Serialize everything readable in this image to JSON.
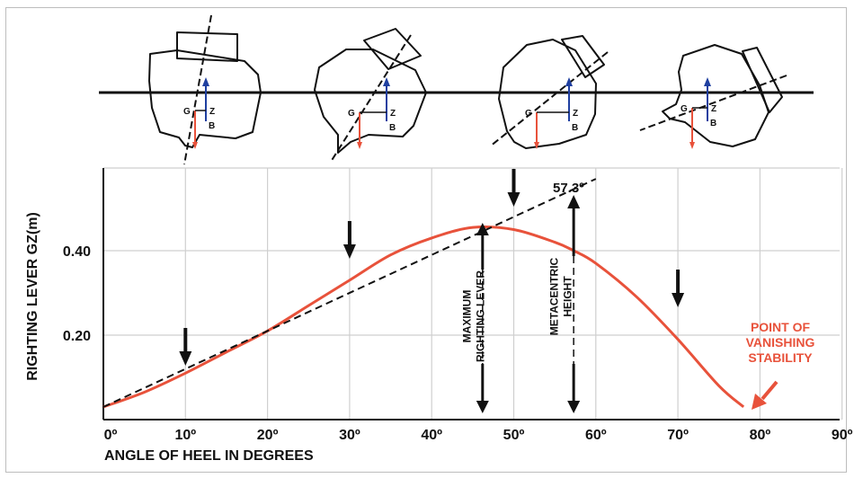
{
  "chart_data": {
    "type": "line",
    "title": "",
    "xlabel": "ANGLE OF HEEL IN DEGREES",
    "ylabel": "RIGHTING LEVER GZ(m)",
    "x_ticks": [
      "0º",
      "10º",
      "20º",
      "30º",
      "40º",
      "50º",
      "60º",
      "70º",
      "80º",
      "90º"
    ],
    "y_ticks": [
      "0.20",
      "0.40"
    ],
    "xlim": [
      0,
      90
    ],
    "ylim": [
      0,
      0.55
    ],
    "grid": true,
    "series": [
      {
        "curve": "gz",
        "color": "#e8523b",
        "x": [
          0,
          5,
          10,
          15,
          20,
          25,
          30,
          35,
          40,
          45,
          50,
          55,
          57.3,
          60,
          65,
          70,
          75,
          78
        ],
        "y": [
          0.03,
          0.065,
          0.11,
          0.16,
          0.21,
          0.27,
          0.33,
          0.39,
          0.43,
          0.455,
          0.45,
          0.42,
          0.4,
          0.37,
          0.29,
          0.19,
          0.08,
          0.03
        ]
      },
      {
        "curve": "tangent",
        "style": "dashed",
        "color": "#111111",
        "x": [
          0,
          60
        ],
        "y": [
          0.03,
          0.57
        ]
      }
    ],
    "arrows_at_degrees": [
      10,
      30,
      50,
      70
    ],
    "annotations": {
      "tangent_label": "57.3º",
      "max_righting_lever": [
        "MAXIMUM",
        "RIGHTING LEVER"
      ],
      "metacentric_height": [
        "METACENTRIC",
        "HEIGHT"
      ],
      "vanishing": [
        "POINT OF",
        "VANISHING",
        "STABILITY"
      ]
    }
  },
  "ships": {
    "point_labels": {
      "g": "G",
      "z": "Z",
      "b": "B"
    },
    "heel_states": [
      10,
      30,
      50,
      70
    ]
  },
  "colors": {
    "curve": "#e8523b",
    "axis_blue": "#1f3fa0",
    "force_red": "#e8523b",
    "ink": "#111111",
    "grid": "#cfcfcf"
  }
}
